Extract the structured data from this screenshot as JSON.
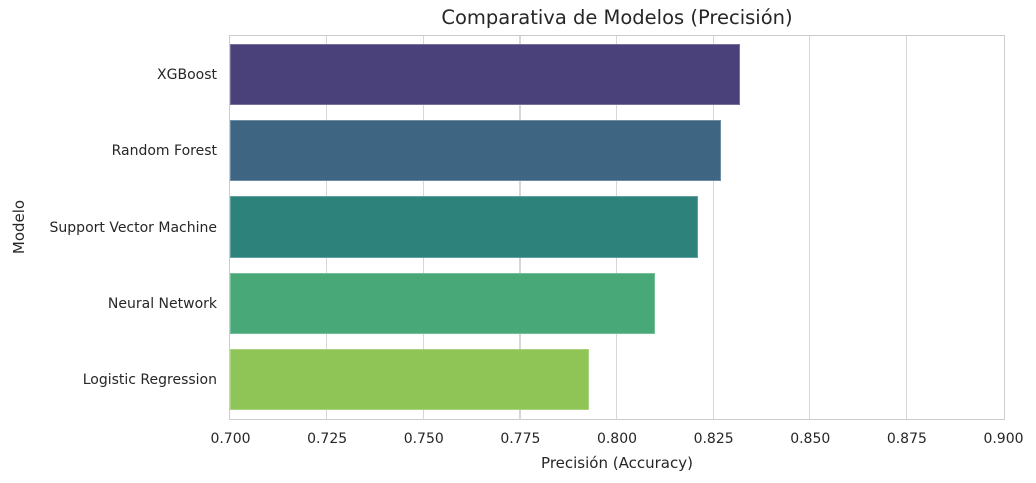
{
  "chart_data": {
    "type": "bar",
    "orientation": "horizontal",
    "title": "Comparativa de Modelos (Precisión)",
    "xlabel": "Precisión (Accuracy)",
    "ylabel": "Modelo",
    "categories": [
      "XGBoost",
      "Random Forest",
      "Support Vector Machine",
      "Neural Network",
      "Logistic Regression"
    ],
    "values": [
      0.832,
      0.827,
      0.821,
      0.81,
      0.793
    ],
    "colors": [
      "#4b417a",
      "#3e6683",
      "#2e827c",
      "#48a878",
      "#8ec556"
    ],
    "xlim": [
      0.7,
      0.9
    ],
    "xticks": [
      "0.700",
      "0.725",
      "0.750",
      "0.775",
      "0.800",
      "0.825",
      "0.850",
      "0.875",
      "0.900"
    ],
    "grid": "x",
    "legend": null
  }
}
